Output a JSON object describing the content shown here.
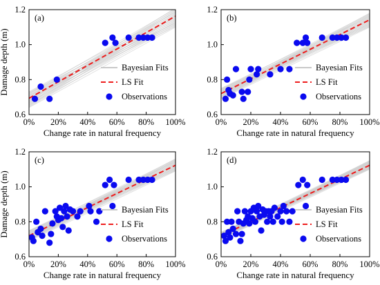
{
  "chart_data": [
    {
      "type": "scatter",
      "panel_label": "(a)",
      "xlabel": "Change rate in natural frequency",
      "ylabel": "Damage depth (m)",
      "xticks": [
        "0%",
        "20%",
        "40%",
        "60%",
        "80%",
        "100%"
      ],
      "yticks": [
        "0.6",
        "0.8",
        "1.0",
        "1.2"
      ],
      "xlim": [
        0,
        100
      ],
      "ylim": [
        0.6,
        1.2
      ],
      "legend": {
        "position": "lower-right",
        "entries": [
          "Bayesian Fits",
          "LS Fit",
          "Observations"
        ]
      },
      "ls_fit": {
        "x": [
          0,
          100
        ],
        "y": [
          0.693,
          1.163
        ]
      },
      "bayes_band": {
        "x": [
          0,
          100
        ],
        "lower": [
          0.64,
          1.1
        ],
        "upper": [
          0.73,
          1.21
        ]
      },
      "series": [
        {
          "name": "Observations",
          "x": [
            4,
            8,
            14,
            19,
            52,
            57,
            59,
            68,
            75,
            78,
            81,
            84
          ],
          "y": [
            0.69,
            0.76,
            0.69,
            0.8,
            1.01,
            1.04,
            1.01,
            1.04,
            1.04,
            1.04,
            1.04,
            1.04
          ]
        }
      ]
    },
    {
      "type": "scatter",
      "panel_label": "(b)",
      "xlabel": "Change rate in natural frequency",
      "ylabel": "",
      "xticks": [
        "0%",
        "20%",
        "40%",
        "60%",
        "80%",
        "100%"
      ],
      "yticks": [
        "0.6",
        "0.8",
        "1.0",
        "1.2"
      ],
      "xlim": [
        0,
        100
      ],
      "ylim": [
        0.6,
        1.2
      ],
      "legend": {
        "position": "lower-right",
        "entries": [
          "Bayesian Fits",
          "LS Fit",
          "Observations"
        ]
      },
      "ls_fit": {
        "x": [
          0,
          100
        ],
        "y": [
          0.72,
          1.142
        ]
      },
      "bayes_band": {
        "x": [
          0,
          100
        ],
        "lower": [
          0.69,
          1.1
        ],
        "upper": [
          0.75,
          1.18
        ]
      },
      "series": [
        {
          "name": "Observations",
          "x": [
            3,
            4,
            5,
            6,
            8,
            10,
            14,
            15,
            18,
            19,
            20,
            24,
            25,
            33,
            40,
            46,
            51,
            55,
            57,
            58,
            68,
            75,
            78,
            81,
            84
          ],
          "y": [
            0.69,
            0.8,
            0.74,
            0.72,
            0.71,
            0.86,
            0.73,
            0.69,
            0.73,
            0.8,
            0.86,
            0.83,
            0.86,
            0.83,
            0.86,
            0.86,
            1.01,
            1.01,
            1.04,
            1.01,
            1.04,
            1.04,
            1.04,
            1.04,
            1.04
          ]
        }
      ]
    },
    {
      "type": "scatter",
      "panel_label": "(c)",
      "xlabel": "Change rate in natural frequency",
      "ylabel": "Damage depth (m)",
      "xticks": [
        "0%",
        "20%",
        "40%",
        "60%",
        "80%",
        "100%"
      ],
      "yticks": [
        "0.6",
        "0.8",
        "1.0",
        "1.2"
      ],
      "xlim": [
        0,
        100
      ],
      "ylim": [
        0.6,
        1.2
      ],
      "legend": {
        "position": "lower-right",
        "entries": [
          "Bayesian Fits",
          "LS Fit",
          "Observations"
        ]
      },
      "ls_fit": {
        "x": [
          0,
          100
        ],
        "y": [
          0.72,
          1.123
        ]
      },
      "bayes_band": {
        "x": [
          0,
          100
        ],
        "lower": [
          0.69,
          1.09
        ],
        "upper": [
          0.75,
          1.16
        ]
      },
      "series": [
        {
          "name": "Observations",
          "x": [
            2,
            3,
            5,
            6,
            8,
            9,
            11,
            14,
            15,
            16,
            18,
            19,
            20,
            21,
            22,
            23,
            24,
            25,
            26,
            27,
            28,
            30,
            33,
            35,
            41,
            42,
            46,
            48,
            52,
            55,
            57,
            58,
            68,
            75,
            78,
            81,
            84
          ],
          "y": [
            0.71,
            0.69,
            0.8,
            0.74,
            0.76,
            0.72,
            0.86,
            0.68,
            0.73,
            0.79,
            0.86,
            0.83,
            0.81,
            0.88,
            0.82,
            0.77,
            0.86,
            0.89,
            0.83,
            0.75,
            0.87,
            0.86,
            0.83,
            0.86,
            0.89,
            0.86,
            0.8,
            0.86,
            1.01,
            1.04,
            0.89,
            1.01,
            1.04,
            1.04,
            1.04,
            1.04,
            1.04
          ]
        }
      ]
    },
    {
      "type": "scatter",
      "panel_label": "(d)",
      "xlabel": "Change rate in natural frequency",
      "ylabel": "",
      "xticks": [
        "0%",
        "20%",
        "40%",
        "60%",
        "80%",
        "100%"
      ],
      "yticks": [
        "0.6",
        "0.8",
        "1.0",
        "1.2"
      ],
      "xlim": [
        0,
        100
      ],
      "ylim": [
        0.6,
        1.2
      ],
      "legend": {
        "position": "lower-right",
        "entries": [
          "Bayesian Fits",
          "LS Fit",
          "Observations"
        ]
      },
      "ls_fit": {
        "x": [
          0,
          100
        ],
        "y": [
          0.72,
          1.123
        ]
      },
      "bayes_band": {
        "x": [
          0,
          100
        ],
        "lower": [
          0.7,
          1.1
        ],
        "upper": [
          0.74,
          1.15
        ]
      },
      "series": [
        {
          "name": "Observations",
          "x": [
            2,
            3,
            4,
            5,
            6,
            7,
            8,
            10,
            11,
            12,
            13,
            14,
            15,
            16,
            17,
            18,
            19,
            20,
            21,
            22,
            23,
            24,
            25,
            26,
            27,
            28,
            29,
            30,
            31,
            32,
            33,
            34,
            35,
            36,
            38,
            40,
            41,
            42,
            44,
            46,
            48,
            52,
            55,
            57,
            58,
            68,
            75,
            78,
            81,
            84
          ],
          "y": [
            0.72,
            0.69,
            0.8,
            0.74,
            0.71,
            0.8,
            0.76,
            0.73,
            0.86,
            0.8,
            0.69,
            0.73,
            0.79,
            0.86,
            0.81,
            0.83,
            0.79,
            0.86,
            0.82,
            0.88,
            0.8,
            0.86,
            0.89,
            0.83,
            0.75,
            0.87,
            0.84,
            0.86,
            0.8,
            0.86,
            0.83,
            0.86,
            0.8,
            0.88,
            0.83,
            0.86,
            0.8,
            0.89,
            0.86,
            0.8,
            0.86,
            1.01,
            1.04,
            0.89,
            1.01,
            1.04,
            1.04,
            1.04,
            1.04,
            1.04
          ]
        }
      ]
    }
  ]
}
